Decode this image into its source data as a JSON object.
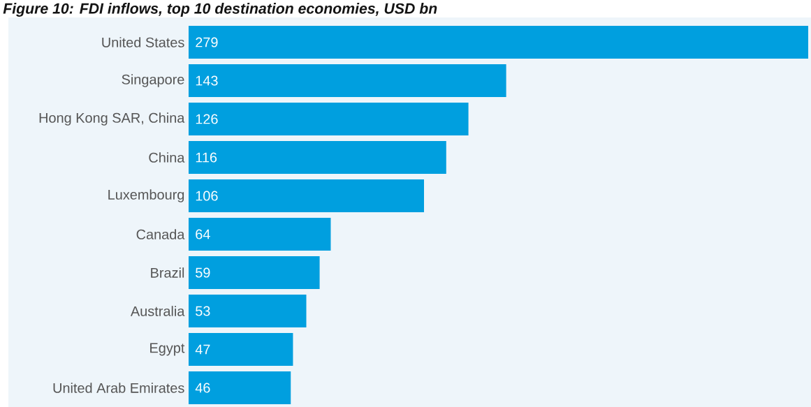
{
  "chart_data": {
    "type": "bar",
    "orientation": "horizontal",
    "title": "Figure 10: FDI inflows, top 10 destination economies, USD bn",
    "categories": [
      "United States",
      "Singapore",
      "Hong Kong SAR, China",
      "China",
      "Luxembourg",
      "Canada",
      "Brazil",
      "Australia",
      "Egypt",
      "United Arab Emirates"
    ],
    "values": [
      279,
      143,
      126,
      116,
      106,
      64,
      59,
      53,
      47,
      46
    ],
    "color": "#009fdf",
    "data_labels": true
  }
}
